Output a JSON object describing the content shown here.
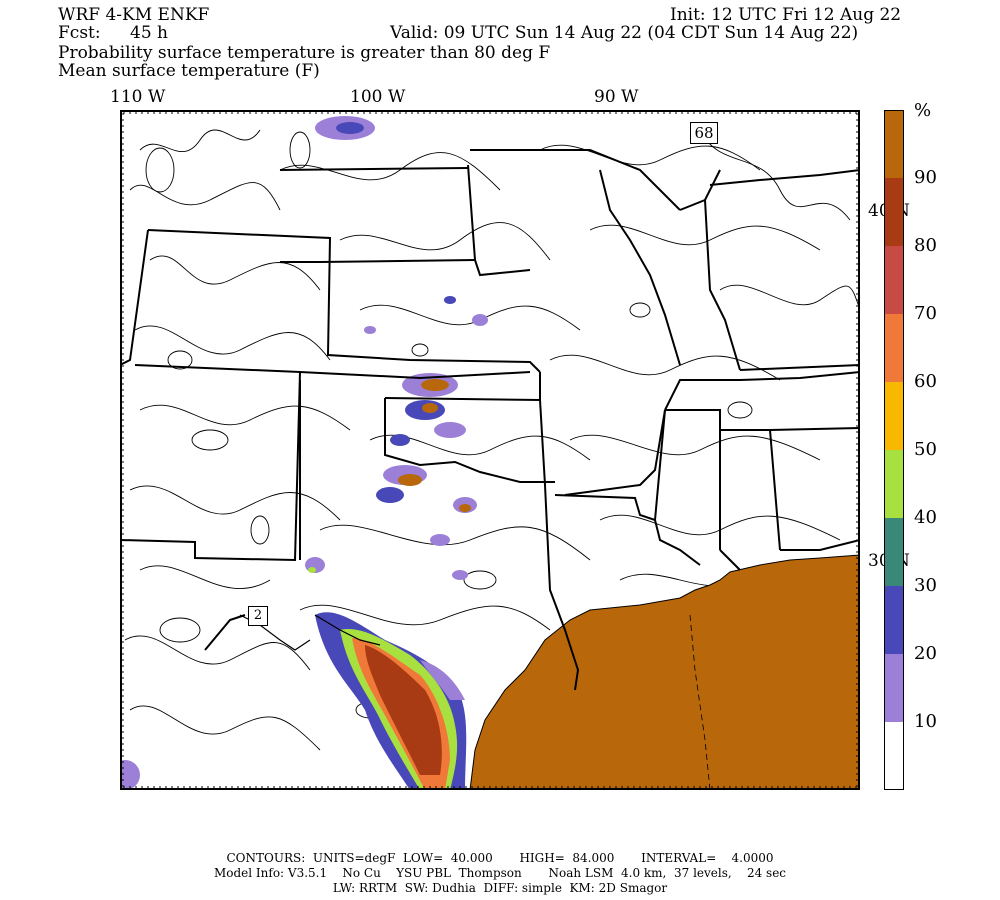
{
  "header": {
    "model": "WRF 4-KM ENKF",
    "init": "Init: 12 UTC Fri 12 Aug 22",
    "fcst_label": "Fcst:",
    "fcst_value": "45 h",
    "valid": "Valid: 09 UTC Sun 14 Aug 22 (04 CDT Sun 14 Aug 22)",
    "line1": "Probability surface temperature is greater than 80 deg F",
    "line2": "Mean surface temperature (F)"
  },
  "map": {
    "lon_labels": [
      "110 W",
      "100 W",
      "90 W"
    ],
    "lat_labels": [
      "40 N",
      "30 N"
    ],
    "highway_labels": [
      "68",
      "2"
    ]
  },
  "colorbar": {
    "unit": "%",
    "ticks": [
      "90",
      "80",
      "70",
      "60",
      "50",
      "40",
      "30",
      "20",
      "10"
    ],
    "colors": [
      "#b8680a",
      "#a83a14",
      "#c84a44",
      "#f07838",
      "#f8b800",
      "#a8e040",
      "#3a8878",
      "#4848b8",
      "#9c80d8",
      "#ffffff"
    ]
  },
  "footer": {
    "line1": "CONTOURS:  UNITS=degF  LOW=  40.000       HIGH=  84.000       INTERVAL=    4.0000",
    "line2": "Model Info: V3.5.1    No Cu    YSU PBL  Thompson       Noah LSM  4.0 km,  37 levels,    24 sec",
    "line3": "LW: RRTM  SW: Dudhia  DIFF: simple  KM: 2D Smagor"
  }
}
